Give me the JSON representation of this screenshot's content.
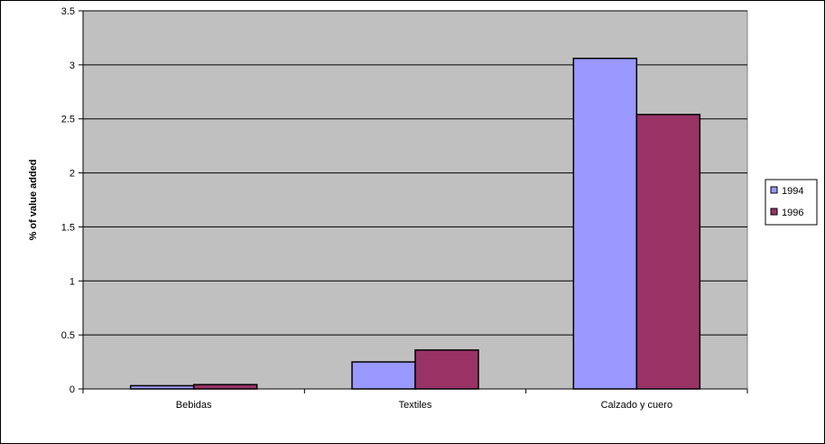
{
  "chart_data": {
    "type": "bar",
    "title": "",
    "xlabel": "",
    "ylabel": "% of value added",
    "categories": [
      "Bebidas",
      "Textiles",
      "Calzado y cuero"
    ],
    "series": [
      {
        "name": "1994",
        "values": [
          0.03,
          0.25,
          3.06
        ],
        "color": "#9999ff"
      },
      {
        "name": "1996",
        "values": [
          0.04,
          0.36,
          2.54
        ],
        "color": "#993366"
      }
    ],
    "ylim": [
      0,
      3.5
    ],
    "yticks": [
      0,
      0.5,
      1,
      1.5,
      2,
      2.5,
      3,
      3.5
    ],
    "ytick_labels": [
      "0",
      "0.5",
      "1",
      "1.5",
      "2",
      "2.5",
      "3",
      "3.5"
    ],
    "grid": true,
    "legend_position": "right",
    "plot_background": "#c0c0c0"
  }
}
